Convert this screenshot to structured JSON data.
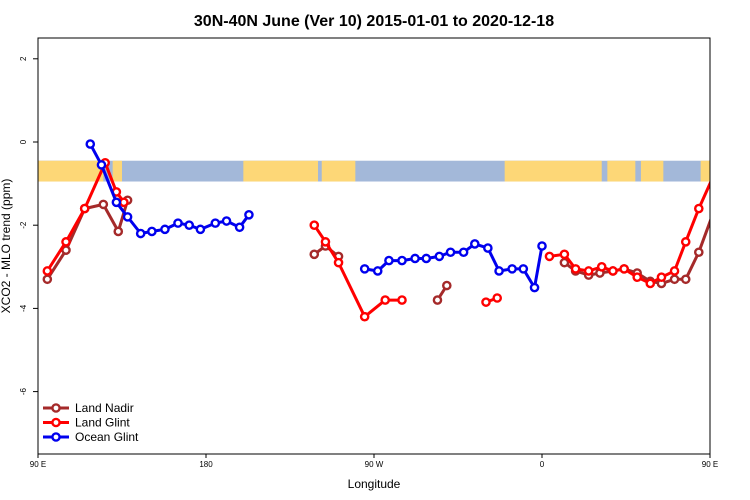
{
  "chart_data": {
    "type": "line",
    "title": "30N-40N June (Ver 10)   2015-01-01 to 2020-12-18",
    "xlabel": "Longitude",
    "ylabel": "XCO2 - MLO trend (ppm)",
    "xlim": [
      90,
      450
    ],
    "ylim": [
      -7.5,
      2.5
    ],
    "x_ticks": [
      {
        "value": 90,
        "label": "90 E"
      },
      {
        "value": 180,
        "label": "180"
      },
      {
        "value": 270,
        "label": "90 W"
      },
      {
        "value": 360,
        "label": "0"
      },
      {
        "value": 450,
        "label": "90 E"
      },
      {
        "value": 540,
        "label": "180"
      }
    ],
    "y_ticks": [
      {
        "value": 2,
        "label": "2"
      },
      {
        "value": 0,
        "label": "0"
      },
      {
        "value": -2,
        "label": "-2"
      },
      {
        "value": -4,
        "label": "-4"
      },
      {
        "value": -6,
        "label": "-6"
      }
    ],
    "legend_position": "bottom-left",
    "land_band": {
      "y_top": -0.45,
      "y_bottom": -0.95,
      "ocean_color": "#a3b8d9",
      "land_color": "#fdd777"
    },
    "series": [
      {
        "name": "Land Nadir",
        "color": "#a52a2a",
        "segments": [
          [
            [
              95,
              -3.3
            ],
            [
              105,
              -2.6
            ],
            [
              115,
              -1.6
            ],
            [
              125,
              -1.5
            ],
            [
              133,
              -2.15
            ],
            [
              138,
              -1.4
            ]
          ],
          [
            [
              238,
              -2.7
            ],
            [
              244,
              -2.5
            ],
            [
              251,
              -2.75
            ]
          ],
          [
            [
              304,
              -3.8
            ],
            [
              309,
              -3.45
            ]
          ],
          [
            [
              372,
              -2.9
            ],
            [
              378,
              -3.1
            ],
            [
              385,
              -3.2
            ],
            [
              391,
              -3.15
            ],
            [
              398,
              -3.1
            ],
            [
              404,
              -3.05
            ],
            [
              411,
              -3.15
            ],
            [
              418,
              -3.35
            ],
            [
              424,
              -3.4
            ],
            [
              431,
              -3.3
            ],
            [
              437,
              -3.3
            ],
            [
              444,
              -2.65
            ],
            [
              453,
              -1.55
            ],
            [
              463,
              -1.55
            ],
            [
              472,
              -2.15
            ],
            [
              475,
              -1.4
            ]
          ]
        ]
      },
      {
        "name": "Land Glint",
        "color": "#ff0000",
        "segments": [
          [
            [
              95,
              -3.1
            ],
            [
              105,
              -2.4
            ],
            [
              115,
              -1.6
            ],
            [
              126,
              -0.5
            ],
            [
              132,
              -1.2
            ],
            [
              136,
              -1.45
            ]
          ],
          [
            [
              238,
              -2.0
            ],
            [
              244,
              -2.4
            ],
            [
              251,
              -2.9
            ],
            [
              265,
              -4.2
            ],
            [
              276,
              -3.8
            ],
            [
              285,
              -3.8
            ]
          ],
          [
            [
              330,
              -3.85
            ],
            [
              336,
              -3.75
            ]
          ],
          [
            [
              364,
              -2.75
            ],
            [
              372,
              -2.7
            ],
            [
              378,
              -3.05
            ],
            [
              385,
              -3.1
            ],
            [
              392,
              -3.0
            ],
            [
              398,
              -3.1
            ],
            [
              404,
              -3.05
            ],
            [
              411,
              -3.25
            ],
            [
              418,
              -3.4
            ],
            [
              424,
              -3.25
            ],
            [
              431,
              -3.1
            ],
            [
              437,
              -2.4
            ],
            [
              444,
              -1.6
            ],
            [
              455,
              -0.5
            ],
            [
              462,
              -1.25
            ],
            [
              465,
              -1.45
            ]
          ]
        ]
      },
      {
        "name": "Ocean Glint",
        "color": "#0000ee",
        "segments": [
          [
            [
              118,
              -0.05
            ],
            [
              124,
              -0.55
            ],
            [
              132,
              -1.45
            ],
            [
              138,
              -1.8
            ],
            [
              145,
              -2.2
            ],
            [
              151,
              -2.15
            ],
            [
              158,
              -2.1
            ],
            [
              165,
              -1.95
            ],
            [
              171,
              -2.0
            ],
            [
              177,
              -2.1
            ],
            [
              185,
              -1.95
            ],
            [
              191,
              -1.9
            ],
            [
              198,
              -2.05
            ],
            [
              203,
              -1.75
            ]
          ],
          [
            [
              265,
              -3.05
            ],
            [
              272,
              -3.1
            ],
            [
              278,
              -2.85
            ],
            [
              285,
              -2.85
            ],
            [
              292,
              -2.8
            ],
            [
              298,
              -2.8
            ],
            [
              305,
              -2.75
            ],
            [
              311,
              -2.65
            ],
            [
              318,
              -2.65
            ],
            [
              324,
              -2.45
            ],
            [
              331,
              -2.55
            ],
            [
              337,
              -3.1
            ],
            [
              344,
              -3.05
            ],
            [
              350,
              -3.05
            ],
            [
              356,
              -3.5
            ],
            [
              360,
              -2.5
            ]
          ]
        ]
      }
    ]
  }
}
